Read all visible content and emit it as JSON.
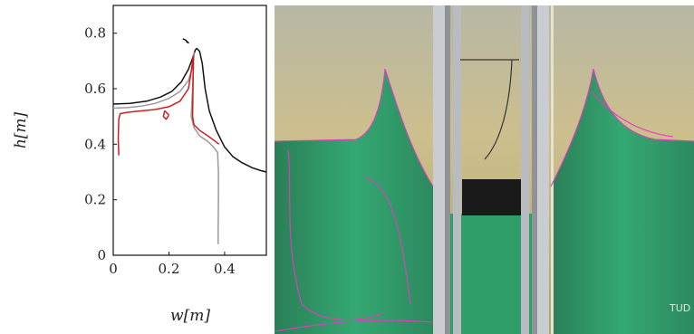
{
  "chart_data": {
    "type": "line",
    "xlabel": "w[m]",
    "ylabel": "h[m]",
    "xlim": [
      0,
      0.55
    ],
    "ylim": [
      0,
      0.9
    ],
    "x_ticks": [
      "0",
      "0.2",
      "0.4"
    ],
    "y_ticks": [
      "0",
      "0.2",
      "0.4",
      "0.6",
      "0.8"
    ],
    "grid": false,
    "legend": "none",
    "series": [
      {
        "color": "#111111",
        "x": [
          0.0,
          0.06,
          0.12,
          0.17,
          0.21,
          0.245,
          0.27,
          0.285,
          0.295,
          0.3,
          0.31,
          0.32,
          0.33,
          0.345,
          0.37,
          0.4,
          0.43,
          0.46,
          0.5,
          0.53,
          0.55
        ],
        "y": [
          0.545,
          0.547,
          0.555,
          0.57,
          0.59,
          0.625,
          0.67,
          0.71,
          0.74,
          0.745,
          0.735,
          0.69,
          0.6,
          0.52,
          0.45,
          0.39,
          0.355,
          0.335,
          0.315,
          0.305,
          0.3
        ]
      },
      {
        "color": "#111111",
        "x": [
          0.25,
          0.26,
          0.27,
          0.262
        ],
        "y": [
          0.78,
          0.775,
          0.765,
          0.77
        ]
      },
      {
        "color": "#999999",
        "x": [
          0.0,
          0.05,
          0.1,
          0.15,
          0.2,
          0.24,
          0.27,
          0.285,
          0.29,
          0.285,
          0.28,
          0.29,
          0.31,
          0.34,
          0.36,
          0.375,
          0.378,
          0.378,
          0.377,
          0.377
        ],
        "y": [
          0.53,
          0.532,
          0.537,
          0.547,
          0.565,
          0.59,
          0.63,
          0.68,
          0.73,
          0.6,
          0.5,
          0.46,
          0.43,
          0.41,
          0.39,
          0.37,
          0.3,
          0.2,
          0.1,
          0.04
        ]
      },
      {
        "color": "#cc1f1f",
        "x": [
          0.02,
          0.018,
          0.02,
          0.025,
          0.05,
          0.1,
          0.15,
          0.2,
          0.24,
          0.27,
          0.28,
          0.288,
          0.285,
          0.29,
          0.31,
          0.34,
          0.36,
          0.38
        ],
        "y": [
          0.36,
          0.42,
          0.49,
          0.51,
          0.515,
          0.52,
          0.525,
          0.535,
          0.555,
          0.6,
          0.66,
          0.72,
          0.5,
          0.47,
          0.45,
          0.43,
          0.415,
          0.4
        ]
      },
      {
        "color": "#cc1f1f",
        "x": [
          0.2,
          0.19,
          0.18,
          0.185,
          0.2
        ],
        "y": [
          0.505,
          0.49,
          0.5,
          0.52,
          0.505
        ]
      }
    ]
  },
  "photo": {
    "watermark": "TUD",
    "colors": {
      "water": "#2f9e68",
      "air": "#d8c88e",
      "frame": "#c9ccd0",
      "contour": "#e23dbd"
    }
  }
}
